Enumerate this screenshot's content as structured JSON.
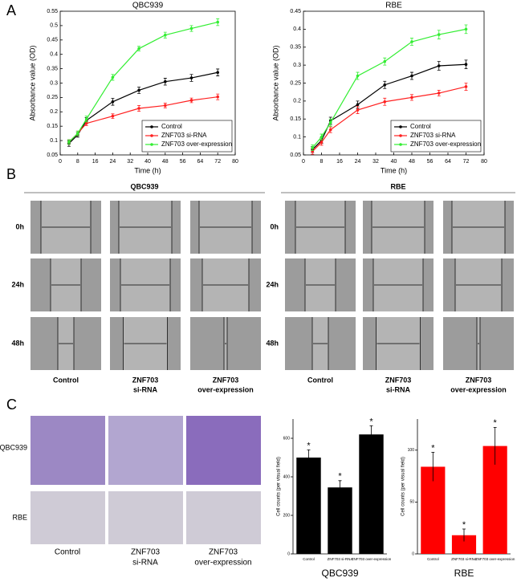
{
  "chart_data": [
    {
      "type": "line",
      "title": "QBC939",
      "x_label": "Time (h)",
      "y_label": "Absorbance value (OD)",
      "x": [
        4,
        8,
        12,
        24,
        36,
        48,
        60,
        72
      ],
      "xlim": [
        0,
        80
      ],
      "xticks": [
        0,
        8,
        16,
        24,
        32,
        40,
        48,
        56,
        64,
        72,
        80
      ],
      "ylim": [
        0.05,
        0.55
      ],
      "yticks": [
        0.05,
        0.1,
        0.15,
        0.2,
        0.25,
        0.3,
        0.35,
        0.4,
        0.45,
        0.5,
        0.55
      ],
      "legend": "lower right",
      "series": [
        {
          "name": "Control",
          "color": "#000000",
          "values": [
            0.09,
            0.12,
            0.17,
            0.235,
            0.275,
            0.305,
            0.318,
            0.337
          ],
          "errors": [
            0.01,
            0.008,
            0.01,
            0.012,
            0.011,
            0.012,
            0.012,
            0.012
          ]
        },
        {
          "name": "ZNF703 si-RNA",
          "color": "#ff2020",
          "values": [
            0.095,
            0.125,
            0.16,
            0.185,
            0.212,
            0.222,
            0.24,
            0.252
          ],
          "errors": [
            0.008,
            0.008,
            0.008,
            0.008,
            0.01,
            0.008,
            0.008,
            0.01
          ]
        },
        {
          "name": "ZNF703 over-expression",
          "color": "#33ee33",
          "values": [
            0.095,
            0.125,
            0.175,
            0.32,
            0.42,
            0.467,
            0.49,
            0.512
          ],
          "errors": [
            0.008,
            0.008,
            0.01,
            0.01,
            0.008,
            0.01,
            0.01,
            0.012
          ]
        }
      ]
    },
    {
      "type": "line",
      "title": "RBE",
      "x_label": "Time (h)",
      "y_label": "Absorbance value (OD)",
      "x": [
        4,
        8,
        12,
        24,
        36,
        48,
        60,
        72
      ],
      "xlim": [
        0,
        80
      ],
      "xticks": [
        0,
        8,
        16,
        24,
        32,
        40,
        48,
        56,
        64,
        72,
        80
      ],
      "ylim": [
        0.05,
        0.45
      ],
      "yticks": [
        0.05,
        0.1,
        0.15,
        0.2,
        0.25,
        0.3,
        0.35,
        0.4,
        0.45
      ],
      "legend": "lower right",
      "series": [
        {
          "name": "Control",
          "color": "#000000",
          "values": [
            0.065,
            0.09,
            0.145,
            0.19,
            0.245,
            0.27,
            0.298,
            0.302
          ],
          "errors": [
            0.008,
            0.008,
            0.01,
            0.01,
            0.01,
            0.01,
            0.012,
            0.012
          ]
        },
        {
          "name": "ZNF703 si-RNA",
          "color": "#ff2020",
          "values": [
            0.06,
            0.085,
            0.12,
            0.175,
            0.198,
            0.21,
            0.222,
            0.24
          ],
          "errors": [
            0.008,
            0.008,
            0.008,
            0.01,
            0.01,
            0.008,
            0.008,
            0.01
          ]
        },
        {
          "name": "ZNF703 over-expression",
          "color": "#33ee33",
          "values": [
            0.07,
            0.1,
            0.14,
            0.27,
            0.31,
            0.365,
            0.385,
            0.4
          ],
          "errors": [
            0.008,
            0.008,
            0.01,
            0.01,
            0.01,
            0.01,
            0.012,
            0.012
          ]
        }
      ]
    },
    {
      "type": "bar",
      "title": "QBC939",
      "y_label": "Cell counts (per visual field)",
      "categories": [
        "Control",
        "ZNF703 si-RNA",
        "ZNF703 over-expression"
      ],
      "values": [
        500,
        345,
        620
      ],
      "errors": [
        40,
        35,
        45
      ],
      "annotations": [
        "*",
        "*",
        "*"
      ],
      "color": "#000000",
      "ylim": [
        0,
        700
      ],
      "yticks": [
        0,
        200,
        400,
        600
      ]
    },
    {
      "type": "bar",
      "title": "RBE",
      "y_label": "Cell counts (per visual field)",
      "categories": [
        "Control",
        "ZNF703 si-RNA",
        "ZNF703 over-expression"
      ],
      "values": [
        84,
        18,
        104
      ],
      "errors": [
        14,
        6,
        18
      ],
      "annotations": [
        "*",
        "*",
        "*"
      ],
      "color": "#ff0000",
      "ylim": [
        0,
        130
      ],
      "yticks": [
        0,
        50,
        100
      ]
    }
  ],
  "figure": {
    "panel_labels": [
      "A",
      "B",
      "C"
    ],
    "wound": {
      "groups": [
        "QBC939",
        "RBE"
      ],
      "rows": [
        "0h",
        "24h",
        "48h"
      ],
      "columns": [
        [
          "Control"
        ],
        [
          "ZNF703",
          "si-RNA"
        ],
        [
          "ZNF703",
          "over-expression"
        ]
      ]
    },
    "transwell": {
      "rows": [
        "QBC939",
        "RBE"
      ],
      "columns": [
        [
          "Control"
        ],
        [
          "ZNF703",
          "si-RNA"
        ],
        [
          "ZNF703",
          "over-expression"
        ]
      ]
    }
  }
}
